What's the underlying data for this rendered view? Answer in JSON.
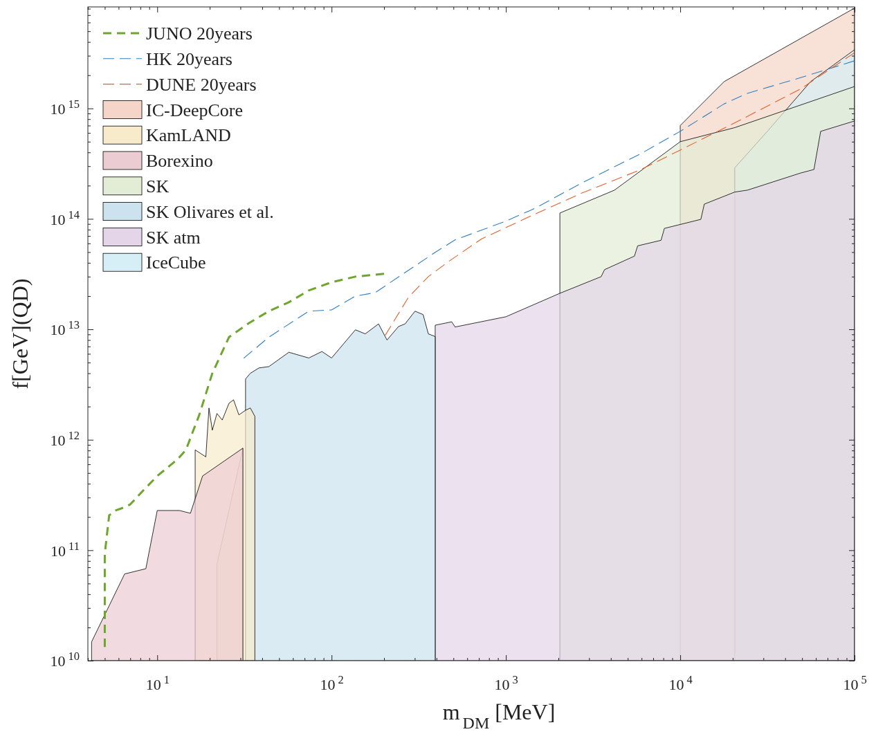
{
  "chart_data": {
    "type": "area",
    "xlabel": "m$_{DM}$ [MeV]",
    "ylabel": "f[GeV](QD)",
    "log": "xy",
    "legend": "top left",
    "marker": "none",
    "xlim": [
      4,
      100000
    ],
    "ylim": [
      10000000000.0,
      8300000000000000.0
    ],
    "xticks": [
      {
        "value": 4,
        "label": null
      },
      {
        "value": 5,
        "label": null
      },
      {
        "value": 6,
        "label": null
      },
      {
        "value": 7,
        "label": null
      },
      {
        "value": 8,
        "label": null
      },
      {
        "value": 9,
        "label": null
      },
      {
        "value": 10,
        "label": "10$^{1}$"
      },
      {
        "value": 20,
        "label": null
      },
      {
        "value": 30,
        "label": null
      },
      {
        "value": 40,
        "label": null
      },
      {
        "value": 50,
        "label": null
      },
      {
        "value": 60,
        "label": null
      },
      {
        "value": 70,
        "label": null
      },
      {
        "value": 80,
        "label": null
      },
      {
        "value": 90,
        "label": null
      },
      {
        "value": 100,
        "label": "10$^{2}$"
      },
      {
        "value": 200,
        "label": null
      },
      {
        "value": 300,
        "label": null
      },
      {
        "value": 400,
        "label": null
      },
      {
        "value": 500,
        "label": null
      },
      {
        "value": 600,
        "label": null
      },
      {
        "value": 700,
        "label": null
      },
      {
        "value": 800,
        "label": null
      },
      {
        "value": 900,
        "label": null
      },
      {
        "value": 1000,
        "label": "10$^{3}$"
      },
      {
        "value": 2000,
        "label": null
      },
      {
        "value": 3000,
        "label": null
      },
      {
        "value": 4000,
        "label": null
      },
      {
        "value": 5000,
        "label": null
      },
      {
        "value": 6000,
        "label": null
      },
      {
        "value": 7000,
        "label": null
      },
      {
        "value": 8000,
        "label": null
      },
      {
        "value": 9000,
        "label": null
      },
      {
        "value": 10000,
        "label": "10$^{4}$"
      },
      {
        "value": 20000,
        "label": null
      },
      {
        "value": 30000,
        "label": null
      },
      {
        "value": 40000,
        "label": null
      },
      {
        "value": 50000,
        "label": null
      },
      {
        "value": 60000,
        "label": null
      },
      {
        "value": 70000,
        "label": null
      },
      {
        "value": 80000,
        "label": null
      },
      {
        "value": 90000,
        "label": null
      },
      {
        "value": 100000,
        "label": "10$^{5}$"
      }
    ],
    "yticks": [
      {
        "value": 10000000000.0,
        "label": "10$^{10}$"
      },
      {
        "value": 20000000000.0,
        "label": null
      },
      {
        "value": 30000000000.0,
        "label": null
      },
      {
        "value": 40000000000.0,
        "label": null
      },
      {
        "value": 50000000000.0,
        "label": null
      },
      {
        "value": 60000000000.0,
        "label": null
      },
      {
        "value": 70000000000.0,
        "label": null
      },
      {
        "value": 80000000000.0,
        "label": null
      },
      {
        "value": 90000000000.0,
        "label": null
      },
      {
        "value": 100000000000.0,
        "label": "10$^{11}$"
      },
      {
        "value": 200000000000.0,
        "label": null
      },
      {
        "value": 300000000000.0,
        "label": null
      },
      {
        "value": 400000000000.0,
        "label": null
      },
      {
        "value": 500000000000.0,
        "label": null
      },
      {
        "value": 600000000000.0,
        "label": null
      },
      {
        "value": 700000000000.0,
        "label": null
      },
      {
        "value": 800000000000.0,
        "label": null
      },
      {
        "value": 900000000000.0,
        "label": null
      },
      {
        "value": 1000000000000.0,
        "label": "10$^{12}$"
      },
      {
        "value": 2000000000000.0,
        "label": null
      },
      {
        "value": 3000000000000.0,
        "label": null
      },
      {
        "value": 4000000000000.0,
        "label": null
      },
      {
        "value": 5000000000000.0,
        "label": null
      },
      {
        "value": 6000000000000.0,
        "label": null
      },
      {
        "value": 7000000000000.0,
        "label": null
      },
      {
        "value": 8000000000000.0,
        "label": null
      },
      {
        "value": 9000000000000.0,
        "label": null
      },
      {
        "value": 10000000000000.0,
        "label": "10$^{13}$"
      },
      {
        "value": 20000000000000.0,
        "label": null
      },
      {
        "value": 30000000000000.0,
        "label": null
      },
      {
        "value": 40000000000000.0,
        "label": null
      },
      {
        "value": 50000000000000.0,
        "label": null
      },
      {
        "value": 60000000000000.0,
        "label": null
      },
      {
        "value": 70000000000000.0,
        "label": null
      },
      {
        "value": 80000000000000.0,
        "label": null
      },
      {
        "value": 90000000000000.0,
        "label": null
      },
      {
        "value": 100000000000000.0,
        "label": "10$^{14}$"
      },
      {
        "value": 200000000000000.0,
        "label": null
      },
      {
        "value": 300000000000000.0,
        "label": null
      },
      {
        "value": 400000000000000.0,
        "label": null
      },
      {
        "value": 500000000000000.0,
        "label": null
      },
      {
        "value": 600000000000000.0,
        "label": null
      },
      {
        "value": 700000000000000.0,
        "label": null
      },
      {
        "value": 800000000000000.0,
        "label": null
      },
      {
        "value": 900000000000000.0,
        "label": null
      },
      {
        "value": 1000000000000000.0,
        "label": "10$^{15}$"
      },
      {
        "value": 2000000000000000.0,
        "label": null
      },
      {
        "value": 3000000000000000.0,
        "label": null
      },
      {
        "value": 4000000000000000.0,
        "label": null
      },
      {
        "value": 5000000000000000.0,
        "label": null
      },
      {
        "value": 6000000000000000.0,
        "label": null
      },
      {
        "value": 7000000000000000.0,
        "label": null
      },
      {
        "value": 8000000000000000.0,
        "label": null
      }
    ],
    "series": [
      {
        "name": "JUNO 20years",
        "type": "line",
        "line_style": "dashed",
        "color": "#6ea62d",
        "x": [
          5.0,
          5.0,
          5.3,
          5.8,
          6.5,
          7.0,
          8.2,
          10,
          13,
          14.6,
          17.4,
          20.7,
          25.8,
          33.6,
          43.7,
          56.9,
          74,
          100,
          137,
          200
        ],
        "values": [
          13300000000.0,
          93000000000.0,
          207000000000.0,
          230000000000.0,
          245000000000.0,
          260000000000.0,
          340000000000.0,
          470000000000.0,
          660000000000.0,
          810000000000.0,
          1670000000000.0,
          4000000000000.0,
          8500000000000.0,
          11400000000000.0,
          14600000000000.0,
          17600000000000.0,
          22500000000000.0,
          26700000000000.0,
          30000000000000.0,
          31800000000000.0
        ]
      },
      {
        "name": "HK 20years",
        "type": "line",
        "line_style": "dashed",
        "color": "#2f7fc1",
        "x": [
          31.3,
          43.7,
          74,
          100,
          137,
          178,
          393,
          511,
          1000,
          1459,
          2700,
          5960,
          10000,
          17860,
          24290,
          49000,
          100000
        ],
        "values": [
          5470000000000.0,
          8500000000000.0,
          14600000000000.0,
          15000000000000.0,
          20000000000000.0,
          21500000000000.0,
          49800000000000.0,
          64500000000000.0,
          95500000000000.0,
          124000000000000.0,
          210000000000000.0,
          390000000000000.0,
          620000000000000.0,
          1100000000000000.0,
          1370000000000000.0,
          1900000000000000.0,
          2700000000000000.0
        ]
      },
      {
        "name": "DUNE 20years",
        "type": "line",
        "line_style": "dashed",
        "color": "#e0622a",
        "x": [
          203,
          276,
          359,
          468,
          726,
          1459,
          2700,
          5960,
          10000,
          20550,
          49000,
          100000
        ],
        "values": [
          8800000000000.0,
          19500000000000.0,
          30000000000000.0,
          41000000000000.0,
          66000000000000.0,
          110000000000000.0,
          170000000000000.0,
          280000000000000.0,
          420000000000000.0,
          740000000000000.0,
          1500000000000000.0,
          3200000000000000.0
        ]
      },
      {
        "name": "IC-DeepCore",
        "color": "#f5d5c8",
        "x": [
          10000,
          17860,
          100000
        ],
        "values": [
          700000000000000.0,
          1750000000000000.0,
          8100000000000000.0
        ]
      },
      {
        "name": "KamLAND",
        "color": "#f8ebcb",
        "x": [
          16.5,
          19.0,
          19.8,
          20.7,
          22.0,
          23.6,
          25.8,
          27.4,
          29.4,
          32.1,
          34.2,
          36.3
        ],
        "values": [
          810000000000.0,
          700000000000.0,
          1940000000000.0,
          1220000000000.0,
          1730000000000.0,
          1510000000000.0,
          2140000000000.0,
          2300000000000.0,
          1680000000000.0,
          1850000000000.0,
          1940000000000.0,
          1630000000000.0
        ]
      },
      {
        "name": "Borexino",
        "color": "#ecccd3",
        "x": [
          4.2,
          6.5,
          8.6,
          10,
          13.4,
          15.5,
          18.2,
          31.0
        ],
        "values": [
          14800000000.0,
          61000000000.0,
          68000000000.0,
          229000000000.0,
          229000000000.0,
          216000000000.0,
          470000000000.0,
          840000000000.0
        ]
      },
      {
        "name": "SK",
        "color": "#e3edd6",
        "x": [
          22.0,
          31.0,
          100,
          2040,
          4196,
          10000,
          20550,
          100000
        ],
        "values": [
          75000000000.0,
          840000000000.0,
          null,
          113000000000000.0,
          182000000000000.0,
          500000000000000.0,
          670000000000000.0,
          1580000000000000.0
        ]
      },
      {
        "name": "SK Olivares et al.",
        "color": "#cce2ef",
        "x": [
          32.1,
          34.2,
          38.3,
          43.7,
          56.9,
          74,
          88,
          100,
          137,
          156,
          186,
          208,
          242,
          264,
          301,
          335,
          359,
          393
        ],
        "values": [
          3550000000000.0,
          4000000000000.0,
          4470000000000.0,
          4600000000000.0,
          6200000000000.0,
          5500000000000.0,
          6300000000000.0,
          5500000000000.0,
          9900000000000.0,
          9100000000000.0,
          11200000000000.0,
          8000000000000.0,
          10600000000000.0,
          11200000000000.0,
          14600000000000.0,
          13600000000000.0,
          9100000000000.0,
          8600000000000.0
        ]
      },
      {
        "name": "SK atm",
        "color": "#e4d5e8",
        "x": [
          393,
          489,
          511,
          1000,
          2040,
          3520,
          3680,
          5460,
          5700,
          7760,
          8110,
          10000,
          13130,
          13740,
          20550,
          24290,
          49000,
          58500,
          63900,
          100000
        ],
        "values": [
          10900000000000.0,
          11700000000000.0,
          10500000000000.0,
          13000000000000.0,
          21200000000000.0,
          30000000000000.0,
          34700000000000.0,
          46000000000000.0,
          57000000000000.0,
          64000000000000.0,
          82000000000000.0,
          89000000000000.0,
          99000000000000.0,
          136000000000000.0,
          175000000000000.0,
          182000000000000.0,
          260000000000000.0,
          280000000000000.0,
          620000000000000.0,
          770000000000000.0
        ]
      },
      {
        "name": "IceCube",
        "color": "#d6eff7",
        "x": [
          20550,
          31600,
          56000,
          100000
        ],
        "values": [
          290000000000000.0,
          620000000000000.0,
          1750000000000000.0,
          3400000000000000.0
        ]
      }
    ]
  }
}
